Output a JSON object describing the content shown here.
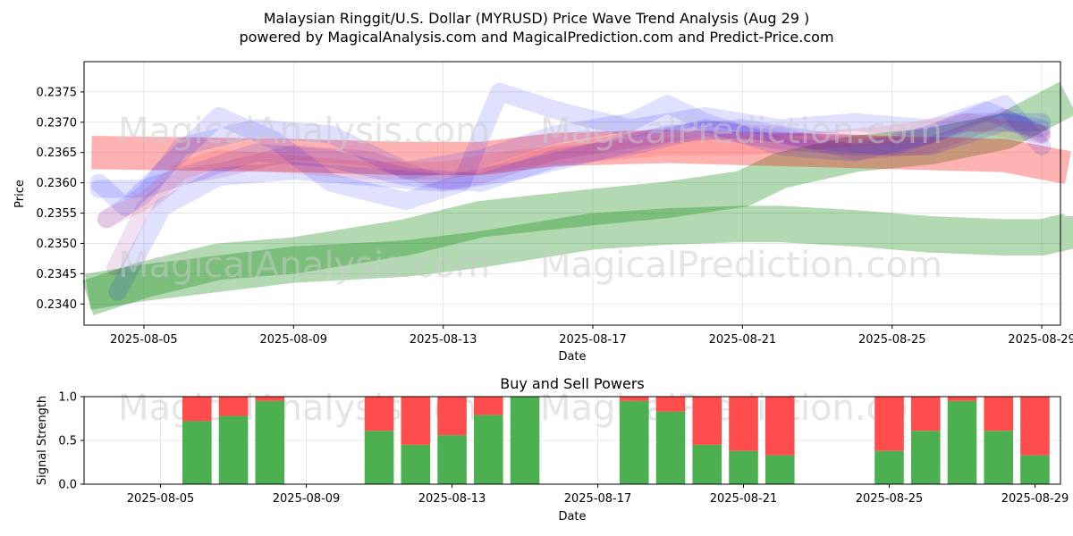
{
  "chart_data": [
    {
      "type": "area",
      "title": "Malaysian Ringgit/U.S. Dollar (MYRUSD) Price Wave Trend Analysis (Aug 29 )",
      "subtitle": "powered by MagicalAnalysis.com and MagicalPrediction.com and Predict-Price.com",
      "xlabel": "Date",
      "ylabel": "Price",
      "x_start": "2025-08-04",
      "x_ticks": [
        "2025-08-05",
        "2025-08-09",
        "2025-08-13",
        "2025-08-17",
        "2025-08-21",
        "2025-08-25",
        "2025-08-29"
      ],
      "y_ticks": [
        "0.2340",
        "0.2345",
        "0.2350",
        "0.2355",
        "0.2360",
        "0.2365",
        "0.2370",
        "0.2375"
      ],
      "ylim": [
        0.23365,
        0.238
      ],
      "xlim_days": [
        -0.6,
        25.5
      ],
      "grid": true,
      "watermarks": [
        "MagicalAnalysis.com",
        "MagicalPrediction.com",
        "MagicalAnalysis.com",
        "MagicalPrediction.com"
      ],
      "bands": [
        {
          "color": "#008000",
          "opacity": 0.3,
          "width": 0.0006,
          "x": [
            -0.5,
            1,
            3,
            5,
            8,
            10,
            13,
            15,
            17,
            18,
            20,
            22,
            24,
            25,
            26,
            27,
            28,
            29,
            30,
            25.8
          ],
          "y": [
            0.2342,
            0.23435,
            0.2345,
            0.23465,
            0.23475,
            0.2349,
            0.2352,
            0.23528,
            0.23532,
            0.23532,
            0.23525,
            0.23515,
            0.2351,
            0.2351,
            0.2352,
            0.23526,
            0.2353,
            0.2354,
            0.23545,
            0.235
          ]
        },
        {
          "color": "#008000",
          "opacity": 0.3,
          "width": 0.0006,
          "x": [
            -0.5,
            1,
            3,
            5,
            8,
            10,
            13,
            15,
            17,
            18,
            20,
            22,
            24,
            25.8
          ],
          "y": [
            0.2341,
            0.2344,
            0.2347,
            0.2348,
            0.2351,
            0.2354,
            0.2356,
            0.23572,
            0.2359,
            0.2362,
            0.23648,
            0.2366,
            0.23685,
            0.2374
          ]
        },
        {
          "color": "#ff0000",
          "opacity": 0.3,
          "width": 0.00055,
          "x": [
            -0.4,
            2,
            5,
            8,
            10,
            12,
            15,
            18,
            21,
            24,
            25.7
          ],
          "y": [
            0.2365,
            0.23648,
            0.23645,
            0.2364,
            0.2364,
            0.23655,
            0.2366,
            0.23655,
            0.2365,
            0.23645,
            0.23625
          ]
        }
      ],
      "wave_lines": [
        {
          "color": "#0000ff",
          "opacity": 0.12,
          "width": 0.0003,
          "x": [
            -0.2,
            0.5,
            1.5,
            3,
            4.5,
            6,
            8,
            9.5,
            10.5,
            12,
            14,
            16,
            18,
            20,
            22,
            23.5,
            25
          ],
          "y": [
            0.236,
            0.2356,
            0.2362,
            0.2371,
            0.2367,
            0.236,
            0.2357,
            0.236,
            0.2375,
            0.2372,
            0.2369,
            0.2371,
            0.2369,
            0.237,
            0.2369,
            0.2372,
            0.2368
          ]
        },
        {
          "color": "#0000ff",
          "opacity": 0.12,
          "width": 0.0003,
          "x": [
            -0.2,
            1,
            2.5,
            4,
            6,
            8,
            10,
            12,
            14,
            16,
            18,
            20,
            22,
            24,
            25
          ],
          "y": [
            0.2359,
            0.2359,
            0.2362,
            0.2365,
            0.2364,
            0.2361,
            0.236,
            0.2364,
            0.2366,
            0.2369,
            0.2367,
            0.2366,
            0.2366,
            0.237,
            0.2369
          ]
        },
        {
          "color": "#0000ff",
          "opacity": 0.12,
          "width": 0.0003,
          "x": [
            0,
            1,
            2,
            4,
            6,
            8,
            10,
            12,
            14,
            15,
            16,
            18,
            20,
            22,
            24,
            25
          ],
          "y": [
            0.2354,
            0.2358,
            0.2366,
            0.2369,
            0.2368,
            0.2362,
            0.2364,
            0.2368,
            0.237,
            0.2373,
            0.237,
            0.2366,
            0.2365,
            0.2368,
            0.2373,
            0.2366
          ]
        },
        {
          "color": "#0000ff",
          "opacity": 0.12,
          "width": 0.0003,
          "x": [
            0.3,
            1.5,
            3,
            5,
            7,
            9,
            11,
            13,
            15,
            17,
            19,
            21,
            23,
            25
          ],
          "y": [
            0.2342,
            0.2356,
            0.2361,
            0.2362,
            0.2361,
            0.236,
            0.2362,
            0.2365,
            0.2368,
            0.2369,
            0.2367,
            0.2366,
            0.237,
            0.237
          ]
        },
        {
          "color": "#ff0000",
          "opacity": 0.1,
          "width": 0.0003,
          "x": [
            0,
            1,
            2,
            3,
            5,
            7,
            9,
            11,
            13,
            15,
            17,
            19,
            21,
            23,
            25
          ],
          "y": [
            0.2354,
            0.2357,
            0.2362,
            0.2364,
            0.2363,
            0.2362,
            0.2362,
            0.2364,
            0.2365,
            0.2366,
            0.2366,
            0.2367,
            0.2368,
            0.237,
            0.2368
          ]
        },
        {
          "color": "#800080",
          "opacity": 0.12,
          "width": 0.00025,
          "x": [
            0.2,
            1,
            2,
            3,
            5,
            7,
            9,
            10,
            12,
            14,
            16,
            18,
            20,
            22,
            24,
            25
          ],
          "y": [
            0.2346,
            0.2356,
            0.2361,
            0.2362,
            0.2365,
            0.2364,
            0.236,
            0.2361,
            0.2365,
            0.2367,
            0.2369,
            0.2368,
            0.2365,
            0.2366,
            0.2371,
            0.2368
          ]
        }
      ]
    },
    {
      "type": "bar",
      "title": "Buy and Sell Powers",
      "xlabel": "Date",
      "ylabel": "Signal Strength",
      "ylim": [
        0,
        1
      ],
      "y_ticks": [
        "0.0",
        "0.5",
        "1.0"
      ],
      "x_ticks": [
        "2025-08-05",
        "2025-08-09",
        "2025-08-13",
        "2025-08-17",
        "2025-08-21",
        "2025-08-25",
        "2025-08-29"
      ],
      "buy_color": "#4caf50",
      "sell_color": "#ff4d4d",
      "bars": [
        {
          "date": "2025-08-06",
          "buy": 0.72
        },
        {
          "date": "2025-08-07",
          "buy": 0.78
        },
        {
          "date": "2025-08-08",
          "buy": 0.95
        },
        {
          "date": "2025-08-11",
          "buy": 0.61
        },
        {
          "date": "2025-08-12",
          "buy": 0.45
        },
        {
          "date": "2025-08-13",
          "buy": 0.56
        },
        {
          "date": "2025-08-14",
          "buy": 0.79
        },
        {
          "date": "2025-08-15",
          "buy": 1.0
        },
        {
          "date": "2025-08-18",
          "buy": 0.95
        },
        {
          "date": "2025-08-19",
          "buy": 0.83
        },
        {
          "date": "2025-08-20",
          "buy": 0.45
        },
        {
          "date": "2025-08-21",
          "buy": 0.38
        },
        {
          "date": "2025-08-22",
          "buy": 0.33
        },
        {
          "date": "2025-08-25",
          "buy": 0.38
        },
        {
          "date": "2025-08-26",
          "buy": 0.61
        },
        {
          "date": "2025-08-27",
          "buy": 0.95
        },
        {
          "date": "2025-08-28",
          "buy": 0.61
        },
        {
          "date": "2025-08-29",
          "buy": 0.33
        }
      ]
    }
  ]
}
